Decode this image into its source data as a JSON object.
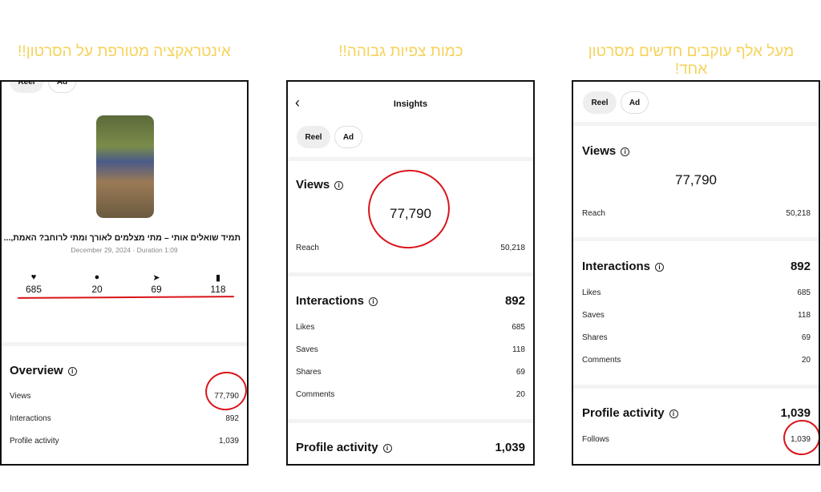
{
  "headings": {
    "left": "אינטראקציה מטורפת על הסרטון!!",
    "middle": "כמות צפיות גבוהה!!",
    "right": "מעל אלף עוקבים חדשים מסרטון אחד!"
  },
  "chips": {
    "reel": "Reel",
    "ad": "Ad"
  },
  "left": {
    "caption": "תמיד שואלים אותי – מתי מצלמים לאורך ומתי לרוחב? האמת,...",
    "meta": "December 29, 2024 · Duration 1:09",
    "stats": [
      {
        "icon": "heart-icon",
        "value": "685"
      },
      {
        "icon": "comment-icon",
        "value": "20"
      },
      {
        "icon": "share-icon",
        "value": "69"
      },
      {
        "icon": "bookmark-icon",
        "value": "118"
      }
    ],
    "overview_title": "Overview",
    "rows": [
      {
        "label": "Views",
        "value": "77,790"
      },
      {
        "label": "Interactions",
        "value": "892"
      },
      {
        "label": "Profile activity",
        "value": "1,039"
      }
    ]
  },
  "middle": {
    "title": "Insights",
    "views_title": "Views",
    "views": "77,790",
    "reach_label": "Reach",
    "reach": "50,218",
    "interactions_title": "Interactions",
    "interactions": "892",
    "rows": [
      {
        "label": "Likes",
        "value": "685"
      },
      {
        "label": "Saves",
        "value": "118"
      },
      {
        "label": "Shares",
        "value": "69"
      },
      {
        "label": "Comments",
        "value": "20"
      }
    ],
    "profile_title": "Profile activity",
    "profile": "1,039"
  },
  "right": {
    "views_title": "Views",
    "views": "77,790",
    "reach_label": "Reach",
    "reach": "50,218",
    "interactions_title": "Interactions",
    "interactions": "892",
    "rows": [
      {
        "label": "Likes",
        "value": "685"
      },
      {
        "label": "Saves",
        "value": "118"
      },
      {
        "label": "Shares",
        "value": "69"
      },
      {
        "label": "Comments",
        "value": "20"
      }
    ],
    "profile_title": "Profile activity",
    "profile": "1,039",
    "follows_label": "Follows",
    "follows": "1,039"
  },
  "colors": {
    "heading": "#f5d35a",
    "annotation": "#d9141a"
  }
}
